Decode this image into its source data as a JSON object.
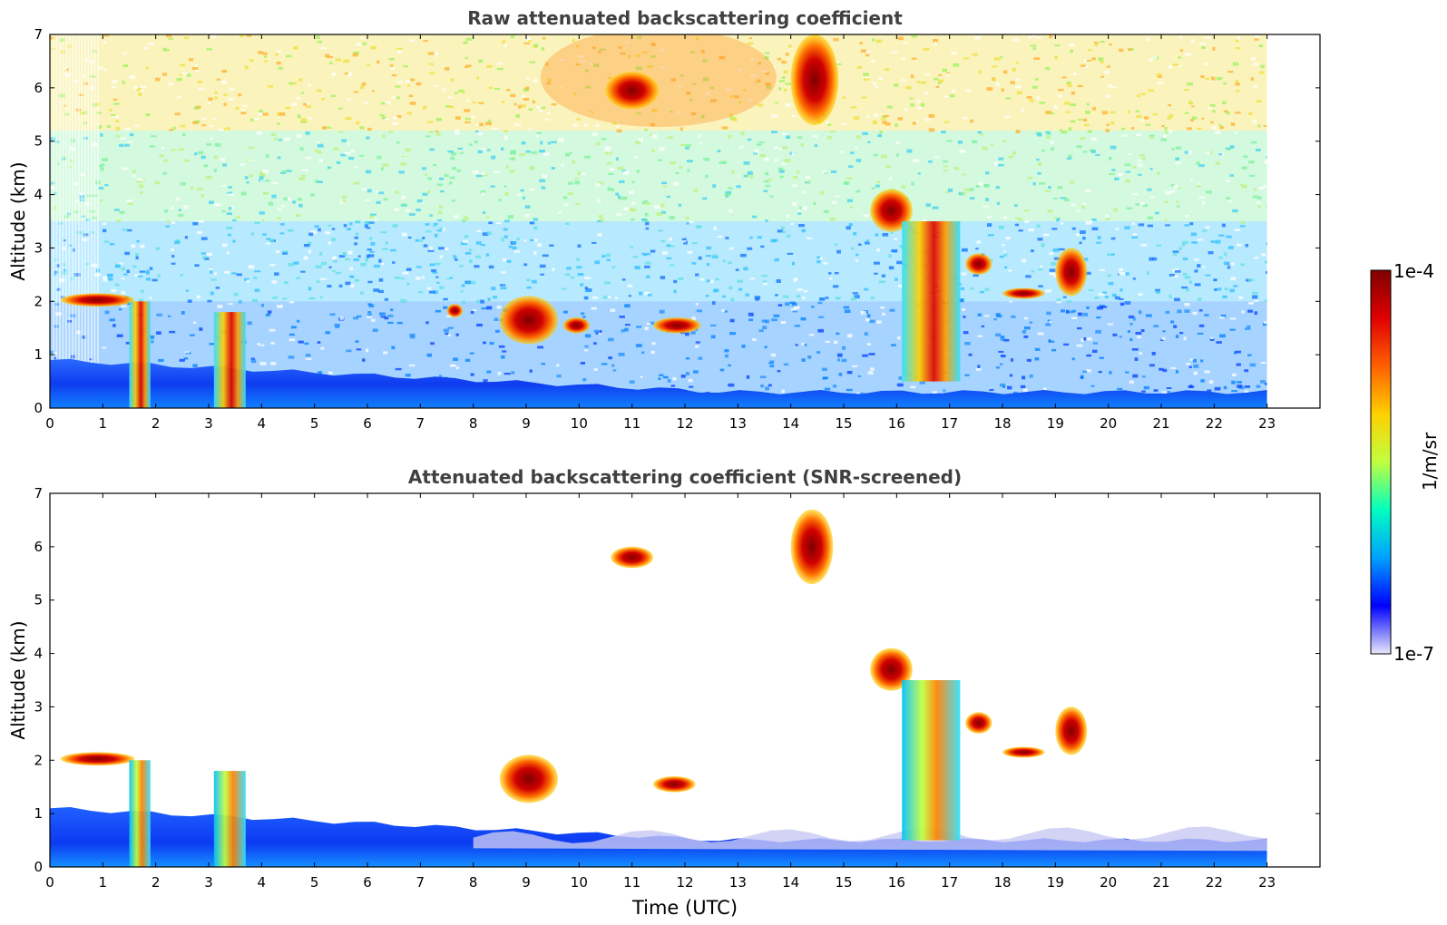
{
  "chart_data": [
    {
      "type": "heatmap",
      "title": "Raw attenuated backscattering coefficient",
      "xlabel": "",
      "ylabel": "Altitude (km)",
      "xlim": [
        0,
        24
      ],
      "ylim": [
        0,
        7
      ],
      "xticks": [
        "0",
        "1",
        "2",
        "3",
        "4",
        "5",
        "6",
        "7",
        "8",
        "9",
        "10",
        "11",
        "12",
        "13",
        "14",
        "15",
        "16",
        "17",
        "18",
        "19",
        "20",
        "21",
        "22",
        "23"
      ],
      "yticks": [
        "0",
        "1",
        "2",
        "3",
        "4",
        "5",
        "6",
        "7"
      ],
      "data_extent_hours": [
        0,
        23
      ],
      "features": [
        {
          "kind": "boundary-layer",
          "x": [
            0,
            23
          ],
          "top_km": [
            0.9,
            0.3
          ]
        },
        {
          "kind": "cloud",
          "x": [
            0.2,
            1.6
          ],
          "y": [
            1.9,
            2.15
          ]
        },
        {
          "kind": "cloud-column",
          "x": [
            1.5,
            1.9
          ],
          "y": [
            0,
            2.0
          ]
        },
        {
          "kind": "cloud-column",
          "x": [
            3.1,
            3.7
          ],
          "y": [
            0,
            1.8
          ]
        },
        {
          "kind": "cloud",
          "x": [
            7.5,
            7.8
          ],
          "y": [
            1.7,
            1.95
          ]
        },
        {
          "kind": "cloud",
          "x": [
            8.5,
            9.6
          ],
          "y": [
            1.2,
            2.1
          ]
        },
        {
          "kind": "cloud",
          "x": [
            9.7,
            10.2
          ],
          "y": [
            1.4,
            1.7
          ]
        },
        {
          "kind": "cloud",
          "x": [
            10.5,
            11.5
          ],
          "y": [
            5.6,
            6.3
          ]
        },
        {
          "kind": "cloud",
          "x": [
            11.4,
            12.3
          ],
          "y": [
            1.4,
            1.7
          ]
        },
        {
          "kind": "cloud",
          "x": [
            14.0,
            14.9
          ],
          "y": [
            5.3,
            7.0
          ]
        },
        {
          "kind": "cloud",
          "x": [
            15.5,
            16.3
          ],
          "y": [
            3.3,
            4.1
          ]
        },
        {
          "kind": "cloud-column",
          "x": [
            16.1,
            17.2
          ],
          "y": [
            0.5,
            3.5
          ]
        },
        {
          "kind": "cloud",
          "x": [
            17.3,
            17.8
          ],
          "y": [
            2.5,
            2.9
          ]
        },
        {
          "kind": "cloud",
          "x": [
            18.0,
            18.8
          ],
          "y": [
            2.05,
            2.25
          ]
        },
        {
          "kind": "cloud",
          "x": [
            19.0,
            19.6
          ],
          "y": [
            2.1,
            3.0
          ]
        }
      ]
    },
    {
      "type": "heatmap",
      "title": "Attenuated backscattering coefficient (SNR-screened)",
      "xlabel": "Time (UTC)",
      "ylabel": "Altitude (km)",
      "xlim": [
        0,
        24
      ],
      "ylim": [
        0,
        7
      ],
      "xticks": [
        "0",
        "1",
        "2",
        "3",
        "4",
        "5",
        "6",
        "7",
        "8",
        "9",
        "10",
        "11",
        "12",
        "13",
        "14",
        "15",
        "16",
        "17",
        "18",
        "19",
        "20",
        "21",
        "22",
        "23"
      ],
      "yticks": [
        "0",
        "1",
        "2",
        "3",
        "4",
        "5",
        "6",
        "7"
      ],
      "data_extent_hours": [
        0,
        23
      ],
      "features": [
        {
          "kind": "boundary-layer",
          "x": [
            0,
            23
          ],
          "top_km": [
            1.1,
            0.5
          ]
        },
        {
          "kind": "cloud",
          "x": [
            0.2,
            1.6
          ],
          "y": [
            1.9,
            2.15
          ]
        },
        {
          "kind": "cloud-column",
          "x": [
            1.5,
            1.9
          ],
          "y": [
            0,
            2.0
          ]
        },
        {
          "kind": "cloud-column",
          "x": [
            3.1,
            3.7
          ],
          "y": [
            0,
            1.8
          ]
        },
        {
          "kind": "cloud",
          "x": [
            8.5,
            9.6
          ],
          "y": [
            1.2,
            2.1
          ]
        },
        {
          "kind": "cloud",
          "x": [
            10.6,
            11.4
          ],
          "y": [
            5.6,
            6.0
          ]
        },
        {
          "kind": "cloud",
          "x": [
            11.4,
            12.2
          ],
          "y": [
            1.4,
            1.7
          ]
        },
        {
          "kind": "cloud",
          "x": [
            14.0,
            14.8
          ],
          "y": [
            5.3,
            6.7
          ]
        },
        {
          "kind": "cloud",
          "x": [
            15.5,
            16.3
          ],
          "y": [
            3.3,
            4.1
          ]
        },
        {
          "kind": "cloud-column",
          "x": [
            16.1,
            17.2
          ],
          "y": [
            0.5,
            3.5
          ]
        },
        {
          "kind": "cloud",
          "x": [
            17.3,
            17.8
          ],
          "y": [
            2.5,
            2.9
          ]
        },
        {
          "kind": "cloud",
          "x": [
            18.0,
            18.8
          ],
          "y": [
            2.05,
            2.25
          ]
        },
        {
          "kind": "cloud",
          "x": [
            19.0,
            19.6
          ],
          "y": [
            2.1,
            3.0
          ]
        }
      ]
    }
  ],
  "colorbar": {
    "label": "1/m/sr",
    "max_label": "1e-4",
    "min_label": "1e-7",
    "scale": "log",
    "colormap": "jet",
    "colors": [
      "#e8e8fa",
      "#0000ff",
      "#00a0ff",
      "#00ffc0",
      "#c0ff40",
      "#ffd000",
      "#ff6000",
      "#e00000",
      "#7f0000"
    ]
  }
}
